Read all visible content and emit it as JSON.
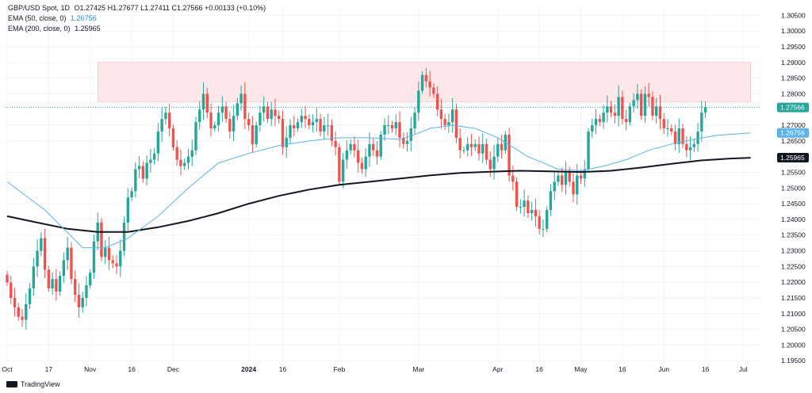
{
  "header": {
    "symbol_line": "GBP/USD Spot, 1D",
    "ohlc": "O1.27425  H1.27677  L1.27411  C1.27566  +0.00133 (+0.10%)",
    "ema50_label": "EMA (50, close, 0)",
    "ema50_value": "1.26756",
    "ema200_label": "EMA (200, close, 0)",
    "ema200_value": "1.25965"
  },
  "footer": {
    "brand": "TradingView"
  },
  "colors": {
    "up": "#26a69a",
    "down": "#ef5350",
    "ema50": "#5bb3e6",
    "ema200": "#131722",
    "zone": "#fde7e9",
    "zone_border": "#f6b8be"
  },
  "chart_data": {
    "type": "candlestick",
    "y_axis": {
      "min": 1.19,
      "max": 1.305,
      "ticks": [
        "1.19500",
        "1.20000",
        "1.20500",
        "1.21000",
        "1.21500",
        "1.22000",
        "1.22500",
        "1.23000",
        "1.23500",
        "1.24000",
        "1.24500",
        "1.25000",
        "1.25500",
        "1.26500",
        "1.27000",
        "1.28000",
        "1.28500",
        "1.29000",
        "1.29500",
        "1.30000",
        "1.30500"
      ]
    },
    "x_axis": {
      "ticks": [
        {
          "label": "Oct",
          "i": 0
        },
        {
          "label": "17",
          "i": 11
        },
        {
          "label": "Nov",
          "i": 22
        },
        {
          "label": "16",
          "i": 33
        },
        {
          "label": "Dec",
          "i": 44
        },
        {
          "label": "2024",
          "i": 64
        },
        {
          "label": "16",
          "i": 73
        },
        {
          "label": "Feb",
          "i": 88
        },
        {
          "label": "Mar",
          "i": 109
        },
        {
          "label": "Apr",
          "i": 130
        },
        {
          "label": "16",
          "i": 141
        },
        {
          "label": "May",
          "i": 152
        },
        {
          "label": "16",
          "i": 163
        },
        {
          "label": "Jun",
          "i": 174
        },
        {
          "label": "16",
          "i": 185
        },
        {
          "label": "Jul",
          "i": 195
        }
      ]
    },
    "last_price": {
      "value": 1.27566,
      "label": "1.27566"
    },
    "ema50_last": {
      "value": 1.26756,
      "label": "1.26756"
    },
    "ema200_last": {
      "value": 1.25965,
      "label": "1.25965"
    },
    "resistance_zone": {
      "from_i": 24,
      "to_i": 197,
      "low": 1.2775,
      "high": 1.29
    },
    "closes": [
      1.2199,
      1.215,
      1.212,
      1.209,
      1.208,
      1.213,
      1.218,
      1.225,
      1.23,
      1.234,
      1.224,
      1.218,
      1.221,
      1.217,
      1.222,
      1.227,
      1.231,
      1.221,
      1.216,
      1.212,
      1.215,
      1.219,
      1.223,
      1.233,
      1.239,
      1.228,
      1.231,
      1.227,
      1.226,
      1.225,
      1.23,
      1.239,
      1.247,
      1.249,
      1.256,
      1.257,
      1.253,
      1.258,
      1.259,
      1.261,
      1.268,
      1.272,
      1.274,
      1.269,
      1.263,
      1.259,
      1.257,
      1.258,
      1.26,
      1.262,
      1.271,
      1.275,
      1.28,
      1.274,
      1.269,
      1.27,
      1.274,
      1.276,
      1.272,
      1.268,
      1.273,
      1.277,
      1.28,
      1.272,
      1.27,
      1.264,
      1.27,
      1.274,
      1.276,
      1.272,
      1.275,
      1.273,
      1.272,
      1.263,
      1.266,
      1.27,
      1.269,
      1.271,
      1.273,
      1.272,
      1.27,
      1.271,
      1.272,
      1.268,
      1.27,
      1.27,
      1.265,
      1.263,
      1.252,
      1.259,
      1.262,
      1.264,
      1.262,
      1.258,
      1.256,
      1.26,
      1.264,
      1.262,
      1.26,
      1.267,
      1.27,
      1.27,
      1.269,
      1.271,
      1.266,
      1.264,
      1.265,
      1.269,
      1.274,
      1.281,
      1.286,
      1.284,
      1.282,
      1.28,
      1.275,
      1.272,
      1.27,
      1.271,
      1.275,
      1.266,
      1.262,
      1.262,
      1.264,
      1.263,
      1.264,
      1.261,
      1.264,
      1.259,
      1.256,
      1.26,
      1.264,
      1.262,
      1.267,
      1.254,
      1.252,
      1.244,
      1.244,
      1.246,
      1.242,
      1.243,
      1.241,
      1.237,
      1.237,
      1.243,
      1.249,
      1.252,
      1.254,
      1.251,
      1.255,
      1.252,
      1.248,
      1.254,
      1.253,
      1.256,
      1.268,
      1.27,
      1.272,
      1.271,
      1.274,
      1.276,
      1.274,
      1.273,
      1.279,
      1.272,
      1.271,
      1.276,
      1.278,
      1.28,
      1.273,
      1.28,
      1.279,
      1.273,
      1.276,
      1.272,
      1.269,
      1.269,
      1.268,
      1.264,
      1.269,
      1.264,
      1.262,
      1.263,
      1.264,
      1.268,
      1.274,
      1.2757
    ],
    "ema50": [
      [
        0,
        1.252
      ],
      [
        10,
        1.243
      ],
      [
        20,
        1.231
      ],
      [
        26,
        1.231
      ],
      [
        32,
        1.234
      ],
      [
        40,
        1.241
      ],
      [
        48,
        1.25
      ],
      [
        56,
        1.258
      ],
      [
        64,
        1.261
      ],
      [
        72,
        1.2635
      ],
      [
        80,
        1.265
      ],
      [
        88,
        1.266
      ],
      [
        96,
        1.266
      ],
      [
        104,
        1.2655
      ],
      [
        108,
        1.267
      ],
      [
        112,
        1.269
      ],
      [
        118,
        1.27
      ],
      [
        124,
        1.269
      ],
      [
        130,
        1.266
      ],
      [
        138,
        1.26
      ],
      [
        146,
        1.256
      ],
      [
        152,
        1.2555
      ],
      [
        158,
        1.257
      ],
      [
        164,
        1.259
      ],
      [
        170,
        1.262
      ],
      [
        176,
        1.264
      ],
      [
        182,
        1.2655
      ],
      [
        188,
        1.2668
      ],
      [
        197,
        1.26756
      ]
    ],
    "ema200": [
      [
        0,
        1.241
      ],
      [
        8,
        1.239
      ],
      [
        16,
        1.237
      ],
      [
        24,
        1.236
      ],
      [
        32,
        1.236
      ],
      [
        40,
        1.2375
      ],
      [
        48,
        1.2395
      ],
      [
        56,
        1.242
      ],
      [
        64,
        1.245
      ],
      [
        72,
        1.2475
      ],
      [
        80,
        1.2495
      ],
      [
        88,
        1.251
      ],
      [
        96,
        1.252
      ],
      [
        104,
        1.253
      ],
      [
        112,
        1.254
      ],
      [
        120,
        1.2548
      ],
      [
        128,
        1.2552
      ],
      [
        136,
        1.2555
      ],
      [
        144,
        1.2553
      ],
      [
        152,
        1.2551
      ],
      [
        160,
        1.2555
      ],
      [
        168,
        1.2565
      ],
      [
        176,
        1.2577
      ],
      [
        184,
        1.2588
      ],
      [
        192,
        1.2594
      ],
      [
        197,
        1.25965
      ]
    ]
  }
}
